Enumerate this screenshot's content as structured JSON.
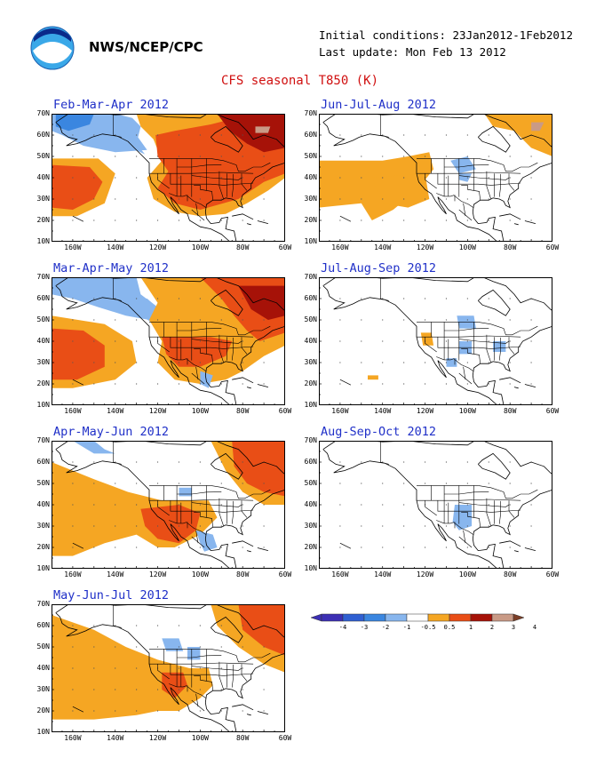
{
  "header": {
    "org": "NWS/NCEP/CPC",
    "initial_conditions": "Initial conditions: 23Jan2012-1Feb2012",
    "last_update": "Last update: Mon Feb 13 2012",
    "title": "CFS seasonal T850 (K)"
  },
  "axes": {
    "lat_labels": [
      "70N",
      "60N",
      "50N",
      "40N",
      "30N",
      "20N",
      "10N"
    ],
    "lon_labels": [
      "160W",
      "140W",
      "120W",
      "100W",
      "80W",
      "60W"
    ]
  },
  "panels": [
    {
      "title": "Feb-Mar-Apr 2012"
    },
    {
      "title": "Jun-Jul-Aug 2012"
    },
    {
      "title": "Mar-Apr-May 2012"
    },
    {
      "title": "Jul-Aug-Sep 2012"
    },
    {
      "title": "Apr-May-Jun 2012"
    },
    {
      "title": "Aug-Sep-Oct 2012"
    },
    {
      "title": "May-Jun-Jul 2012"
    }
  ],
  "colorbar": {
    "labels": [
      "-4",
      "-3",
      "-2",
      "-1",
      "-0.5",
      "0.5",
      "1",
      "2",
      "3",
      "4"
    ],
    "colors": [
      "#3c2fb4",
      "#2f5fd2",
      "#3a86e0",
      "#88b6ee",
      "#ffffff",
      "#f5a623",
      "#e94e16",
      "#a61208",
      "#c99a86",
      "#7b3e26"
    ]
  },
  "colors": {
    "cold_light": "#88b6ee",
    "cold_mid": "#3a86e0",
    "warm1": "#f5a623",
    "warm2": "#e94e16",
    "warm3": "#a61208",
    "warm4": "#c99a86"
  }
}
